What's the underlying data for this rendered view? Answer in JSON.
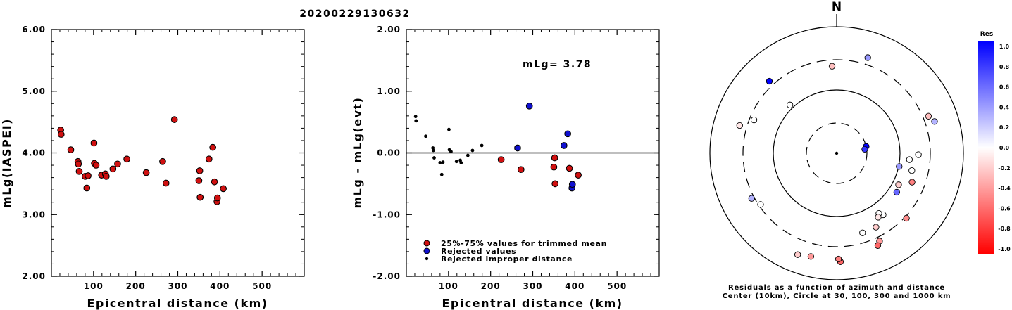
{
  "title": "20200229130632",
  "colors": {
    "red": "#d01010",
    "blue": "#1010d0",
    "black": "#000000"
  },
  "chart_data": [
    {
      "type": "scatter",
      "id": "left",
      "xlabel": "Epicentral distance (km)",
      "ylabel": "mLg(IASPEI)",
      "xlim": [
        0,
        600
      ],
      "ylim": [
        2.0,
        6.0
      ],
      "xticks": [
        "100",
        "200",
        "300",
        "400",
        "500"
      ],
      "yticks": [
        "2.00",
        "3.00",
        "4.00",
        "5.00",
        "6.00"
      ],
      "points": [
        [
          22,
          4.37
        ],
        [
          23,
          4.3
        ],
        [
          46,
          4.05
        ],
        [
          63,
          3.86
        ],
        [
          64,
          3.82
        ],
        [
          66,
          3.7
        ],
        [
          80,
          3.62
        ],
        [
          84,
          3.43
        ],
        [
          87,
          3.63
        ],
        [
          101,
          4.16
        ],
        [
          102,
          3.83
        ],
        [
          106,
          3.8
        ],
        [
          119,
          3.64
        ],
        [
          128,
          3.66
        ],
        [
          130,
          3.62
        ],
        [
          146,
          3.74
        ],
        [
          157,
          3.82
        ],
        [
          179,
          3.9
        ],
        [
          225,
          3.68
        ],
        [
          264,
          3.86
        ],
        [
          272,
          3.51
        ],
        [
          292,
          4.54
        ],
        [
          350,
          3.55
        ],
        [
          352,
          3.71
        ],
        [
          353,
          3.28
        ],
        [
          374,
          3.9
        ],
        [
          383,
          4.09
        ],
        [
          387,
          3.53
        ],
        [
          393,
          3.21
        ],
        [
          394,
          3.27
        ],
        [
          408,
          3.42
        ]
      ]
    },
    {
      "type": "scatter",
      "id": "residuals",
      "xlabel": "Epicentral distance (km)",
      "ylabel": "mLg - mLg(evt)",
      "xlim": [
        0,
        600
      ],
      "ylim": [
        -2.0,
        2.0
      ],
      "xticks": [
        "100",
        "200",
        "300",
        "400",
        "500"
      ],
      "yticks": [
        "-2.00",
        "-1.00",
        "0.00",
        "1.00",
        "2.00"
      ],
      "annotation": "mLg= 3.78",
      "legend": [
        {
          "label": "25%-75% values for trimmed mean",
          "kind": "trimmed"
        },
        {
          "label": "Rejected values",
          "kind": "rejected"
        },
        {
          "label": "Rejected improper distance",
          "kind": "improper"
        }
      ],
      "trimmed": [
        [
          225,
          -0.11
        ],
        [
          272,
          -0.27
        ],
        [
          350,
          -0.23
        ],
        [
          352,
          -0.08
        ],
        [
          353,
          -0.5
        ],
        [
          387,
          -0.25
        ],
        [
          408,
          -0.36
        ]
      ],
      "rejected": [
        [
          264,
          0.08
        ],
        [
          292,
          0.76
        ],
        [
          374,
          0.12
        ],
        [
          383,
          0.31
        ],
        [
          393,
          -0.57
        ],
        [
          394,
          -0.51
        ]
      ],
      "improper": [
        [
          22,
          0.59
        ],
        [
          23,
          0.52
        ],
        [
          46,
          0.27
        ],
        [
          63,
          0.08
        ],
        [
          64,
          0.04
        ],
        [
          66,
          -0.08
        ],
        [
          80,
          -0.16
        ],
        [
          84,
          -0.35
        ],
        [
          87,
          -0.15
        ],
        [
          101,
          0.38
        ],
        [
          102,
          0.05
        ],
        [
          106,
          0.02
        ],
        [
          119,
          -0.14
        ],
        [
          128,
          -0.12
        ],
        [
          130,
          -0.16
        ],
        [
          146,
          -0.04
        ],
        [
          157,
          0.04
        ],
        [
          179,
          0.12
        ]
      ]
    },
    {
      "type": "polar",
      "id": "azimuth",
      "north_label": "N",
      "caption_lines": [
        "Residuals as a function of azimuth and distance",
        "Center (10km), Circle at 30, 100, 300 and 1000 km"
      ],
      "colorbar": {
        "title": "Res",
        "ticks": [
          "1.0",
          "0.8",
          "0.6",
          "0.4",
          "0.2",
          "0.0",
          "-0.2",
          "-0.4",
          "-0.6",
          "-0.8",
          "-1.0"
        ]
      },
      "stations": [
        {
          "azimuth": 18,
          "distance": 388,
          "res": 0.4
        },
        {
          "azimuth": 317,
          "distance": 360,
          "res": 1.0
        },
        {
          "azimuth": 357,
          "distance": 238,
          "res": -0.25
        },
        {
          "azimuth": 316,
          "distance": 115,
          "res": 0.0
        },
        {
          "azimuth": 77,
          "distance": 30,
          "res": 1.0
        },
        {
          "azimuth": 82,
          "distance": 28,
          "res": 0.8
        },
        {
          "azimuth": 68,
          "distance": 365,
          "res": -0.25
        },
        {
          "azimuth": 72,
          "distance": 420,
          "res": 0.3
        },
        {
          "azimuth": 91,
          "distance": 195,
          "res": 0.0
        },
        {
          "azimuth": 95,
          "distance": 142,
          "res": 0.0
        },
        {
          "azimuth": 102,
          "distance": 102,
          "res": 0.4
        },
        {
          "azimuth": 103,
          "distance": 165,
          "res": 0.0
        },
        {
          "azimuth": 111,
          "distance": 188,
          "res": -0.5
        },
        {
          "azimuth": 117,
          "distance": 125,
          "res": -0.2
        },
        {
          "azimuth": 123,
          "distance": 135,
          "res": 0.6
        },
        {
          "azimuth": 133,
          "distance": 320,
          "res": -0.45
        },
        {
          "azimuth": 143,
          "distance": 165,
          "res": 0.0
        },
        {
          "azimuth": 145,
          "distance": 145,
          "res": 0.0
        },
        {
          "azimuth": 147,
          "distance": 160,
          "res": -0.1
        },
        {
          "azimuth": 152,
          "distance": 210,
          "res": -0.2
        },
        {
          "azimuth": 154,
          "distance": 350,
          "res": -0.4
        },
        {
          "azimuth": 156,
          "distance": 395,
          "res": -0.6
        },
        {
          "azimuth": 162,
          "distance": 210,
          "res": 0.0
        },
        {
          "azimuth": 178,
          "distance": 520,
          "res": -0.6
        },
        {
          "azimuth": 179,
          "distance": 470,
          "res": -0.5
        },
        {
          "azimuth": 194,
          "distance": 480,
          "res": -0.4
        },
        {
          "azimuth": 201,
          "distance": 520,
          "res": -0.2
        },
        {
          "azimuth": 236,
          "distance": 280,
          "res": 0.0
        },
        {
          "azimuth": 242,
          "distance": 330,
          "res": 0.3
        },
        {
          "azimuth": 286,
          "distance": 390,
          "res": -0.1
        },
        {
          "azimuth": 292,
          "distance": 255,
          "res": 0.0
        }
      ]
    }
  ]
}
